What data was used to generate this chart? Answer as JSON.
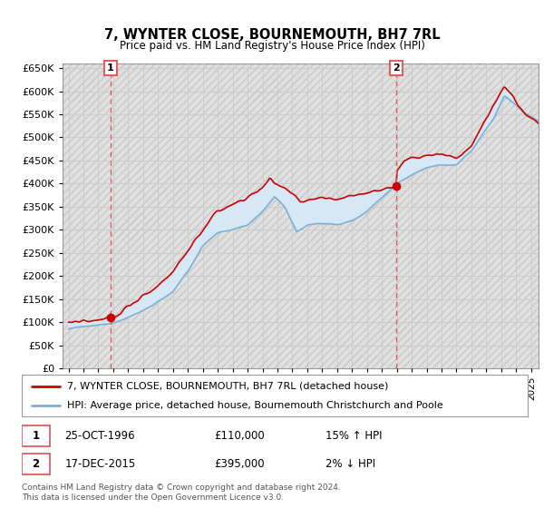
{
  "title": "7, WYNTER CLOSE, BOURNEMOUTH, BH7 7RL",
  "subtitle": "Price paid vs. HM Land Registry's House Price Index (HPI)",
  "ylim": [
    0,
    660000
  ],
  "yticks": [
    0,
    50000,
    100000,
    150000,
    200000,
    250000,
    300000,
    350000,
    400000,
    450000,
    500000,
    550000,
    600000,
    650000
  ],
  "xlim_start": 1993.6,
  "xlim_end": 2025.5,
  "sale1_year": 1996.82,
  "sale1_price": 110000,
  "sale1_label": "1",
  "sale2_year": 2015.96,
  "sale2_price": 395000,
  "sale2_label": "2",
  "legend_line1": "7, WYNTER CLOSE, BOURNEMOUTH, BH7 7RL (detached house)",
  "legend_line2": "HPI: Average price, detached house, Bournemouth Christchurch and Poole",
  "footnote": "Contains HM Land Registry data © Crown copyright and database right 2024.\nThis data is licensed under the Open Government Licence v3.0.",
  "line_color_red": "#cc0000",
  "line_color_blue": "#7ab0d4",
  "fill_color_blue": "#d6e8f5",
  "dashed_line_color": "#e06060",
  "grid_color": "#cccccc",
  "hatch_color": "#e0e0e0",
  "sale_marker_color": "#cc0000"
}
